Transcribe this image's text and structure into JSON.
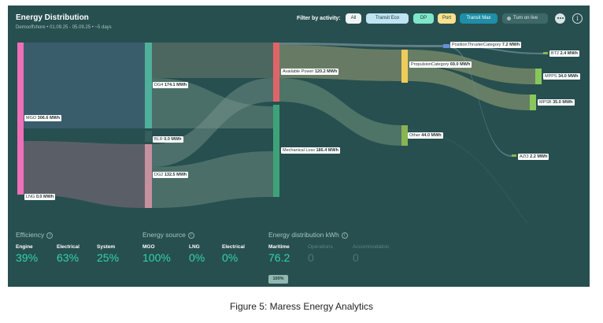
{
  "header": {
    "title": "Energy Distribution",
    "subtitle": "Demooffshore • 01.09.25 - 05.09.25 • ~5 days",
    "filter_label": "Filter by activity:",
    "filters": {
      "all": "All",
      "transit_eco": "Transit Eco",
      "dp": "DP",
      "port": "Port",
      "transit_max": "Transit Max"
    },
    "live_button": "Turn on live"
  },
  "colors": {
    "panel": "#274f4f",
    "mgo": "#ef6fb8",
    "dg4": "#4fb09c",
    "dg2": "#c7909f",
    "available": "#df6469",
    "mechanical_loss": "#3ea279",
    "propulsion": "#efcc5a",
    "other": "#88b452",
    "accent": "#33d3ac"
  },
  "sankey": {
    "nodes": {
      "mgo": {
        "name": "MGO",
        "value": "306.6 MWh"
      },
      "lng": {
        "name": "LNG",
        "value": "0.0 MWh"
      },
      "dg4": {
        "name": "DG4",
        "value": "174.1 MWh"
      },
      "blr": {
        "name": "BLR",
        "value": "0.0 MWh"
      },
      "dg2": {
        "name": "DG2",
        "value": "132.5 MWh"
      },
      "available": {
        "name": "Available Power",
        "value": "120.2 MWh"
      },
      "mechanical_loss": {
        "name": "Mechanical Loss",
        "value": "186.4 MWh"
      },
      "position_thruster": {
        "name": "PositionThrusterCategory",
        "value": "7.2 MWh"
      },
      "propulsion": {
        "name": "PropulsionCategory",
        "value": "69.0 MWh"
      },
      "other": {
        "name": "Other",
        "value": "44.0 MWh"
      },
      "bt2": {
        "name": "BT2",
        "value": "2.4 MWh"
      },
      "mpps": {
        "name": "MPPS",
        "value": "34.0 MWh"
      },
      "mpsb": {
        "name": "MPSB",
        "value": "35.0 MWh"
      },
      "azi3": {
        "name": "AZI3",
        "value": "2.2 MWh"
      }
    }
  },
  "stats": {
    "efficiency": {
      "heading": "Efficiency",
      "engine": {
        "label": "Engine",
        "value": "39%"
      },
      "electrical": {
        "label": "Electrical",
        "value": "63%"
      },
      "system": {
        "label": "System",
        "value": "25%"
      }
    },
    "energy_source": {
      "heading": "Energy source",
      "mgo": {
        "label": "MGO",
        "value": "100%"
      },
      "lng": {
        "label": "LNG",
        "value": "0%"
      },
      "electrical": {
        "label": "Electrical",
        "value": "0%"
      }
    },
    "distribution": {
      "heading": "Energy distribution kWh",
      "maritime": {
        "label": "Maritime",
        "value": "76.2"
      },
      "operations": {
        "label": "Operations",
        "value": "0"
      },
      "accommodation": {
        "label": "Accommodation",
        "value": "0"
      },
      "badge": "100%"
    }
  },
  "caption": "Figure 5: Maress Energy Analytics"
}
